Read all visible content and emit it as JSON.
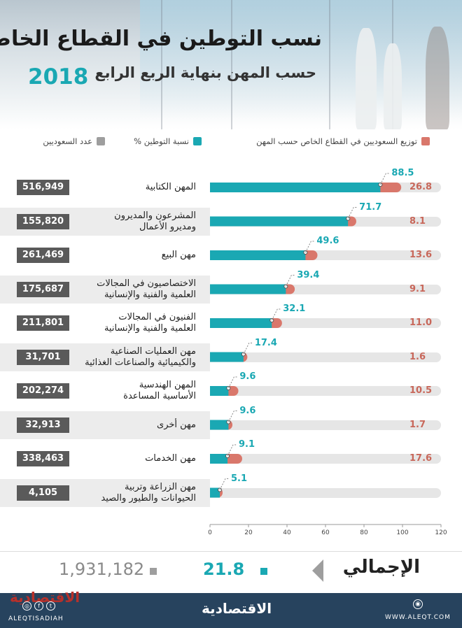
{
  "header": {
    "title": "نسب التوطين في القطاع الخاص",
    "subtitle": "حسب المهن بنهاية الربع الرابع",
    "year": "2018"
  },
  "legend": {
    "distribution": "توزيع السعوديين في القطاع الخاص حسب المهن",
    "saudization": "نسبة التوطين %",
    "count": "عدد السعوديين"
  },
  "colors": {
    "saudization": "#1aa8b3",
    "distribution": "#d9776b",
    "count": "#5a5a5a",
    "track": "#e6e6e6",
    "footer": "#27435e"
  },
  "chart_data": {
    "type": "bar",
    "orientation": "horizontal",
    "xlim": [
      0,
      120
    ],
    "xticks": [
      "0",
      "20",
      "40",
      "60",
      "80",
      "100",
      "120"
    ],
    "categories": [
      {
        "label_lines": [
          "المهن الكتابية"
        ],
        "count": "516,949"
      },
      {
        "label_lines": [
          "المشرعون والمديرون",
          "ومديرو الأعمال"
        ],
        "count": "155,820"
      },
      {
        "label_lines": [
          "مهن البيع"
        ],
        "count": "261,469"
      },
      {
        "label_lines": [
          "الاختصاصيون في المجالات",
          "العلمية والفنية والإنسانية"
        ],
        "count": "175,687"
      },
      {
        "label_lines": [
          "الفنيون في المجالات",
          "العلمية والفنية والإنسانية"
        ],
        "count": "211,801"
      },
      {
        "label_lines": [
          "مهن العمليات الصناعية",
          "والكيميائية والصناعات الغذائية"
        ],
        "count": "31,701"
      },
      {
        "label_lines": [
          "المهن الهندسية",
          "الأساسية المساعدة"
        ],
        "count": "202,274"
      },
      {
        "label_lines": [
          "مهن أخرى"
        ],
        "count": "32,913"
      },
      {
        "label_lines": [
          "مهن الخدمات"
        ],
        "count": "338,463"
      },
      {
        "label_lines": [
          "مهن الزراعة وتربية",
          "الحيوانات والطيور والصيد"
        ],
        "count": "4,105"
      }
    ],
    "series": [
      {
        "name": "نسبة التوطين %",
        "values": [
          88.5,
          71.7,
          49.6,
          39.4,
          32.1,
          17.4,
          9.6,
          9.6,
          9.1,
          5.1
        ]
      },
      {
        "name": "توزيع السعوديين في القطاع الخاص حسب المهن",
        "values": [
          26.8,
          8.1,
          13.6,
          9.1,
          11.0,
          1.6,
          10.5,
          1.7,
          17.6,
          0
        ]
      }
    ],
    "distribution_labels": [
      "26.8",
      "8.1",
      "13.6",
      "9.1",
      "11.0",
      "1.6",
      "10.5",
      "1.7",
      "17.6",
      ""
    ]
  },
  "totals": {
    "label": "الإجمالي",
    "saudization": "21.8",
    "count": "1,931,182"
  },
  "footer": {
    "logo": "الاقتصادية",
    "handle": "ALEQTISADIAH",
    "website": "WWW.ALEQT.COM",
    "social_icons": [
      "instagram-icon",
      "facebook-icon",
      "twitter-icon"
    ]
  }
}
